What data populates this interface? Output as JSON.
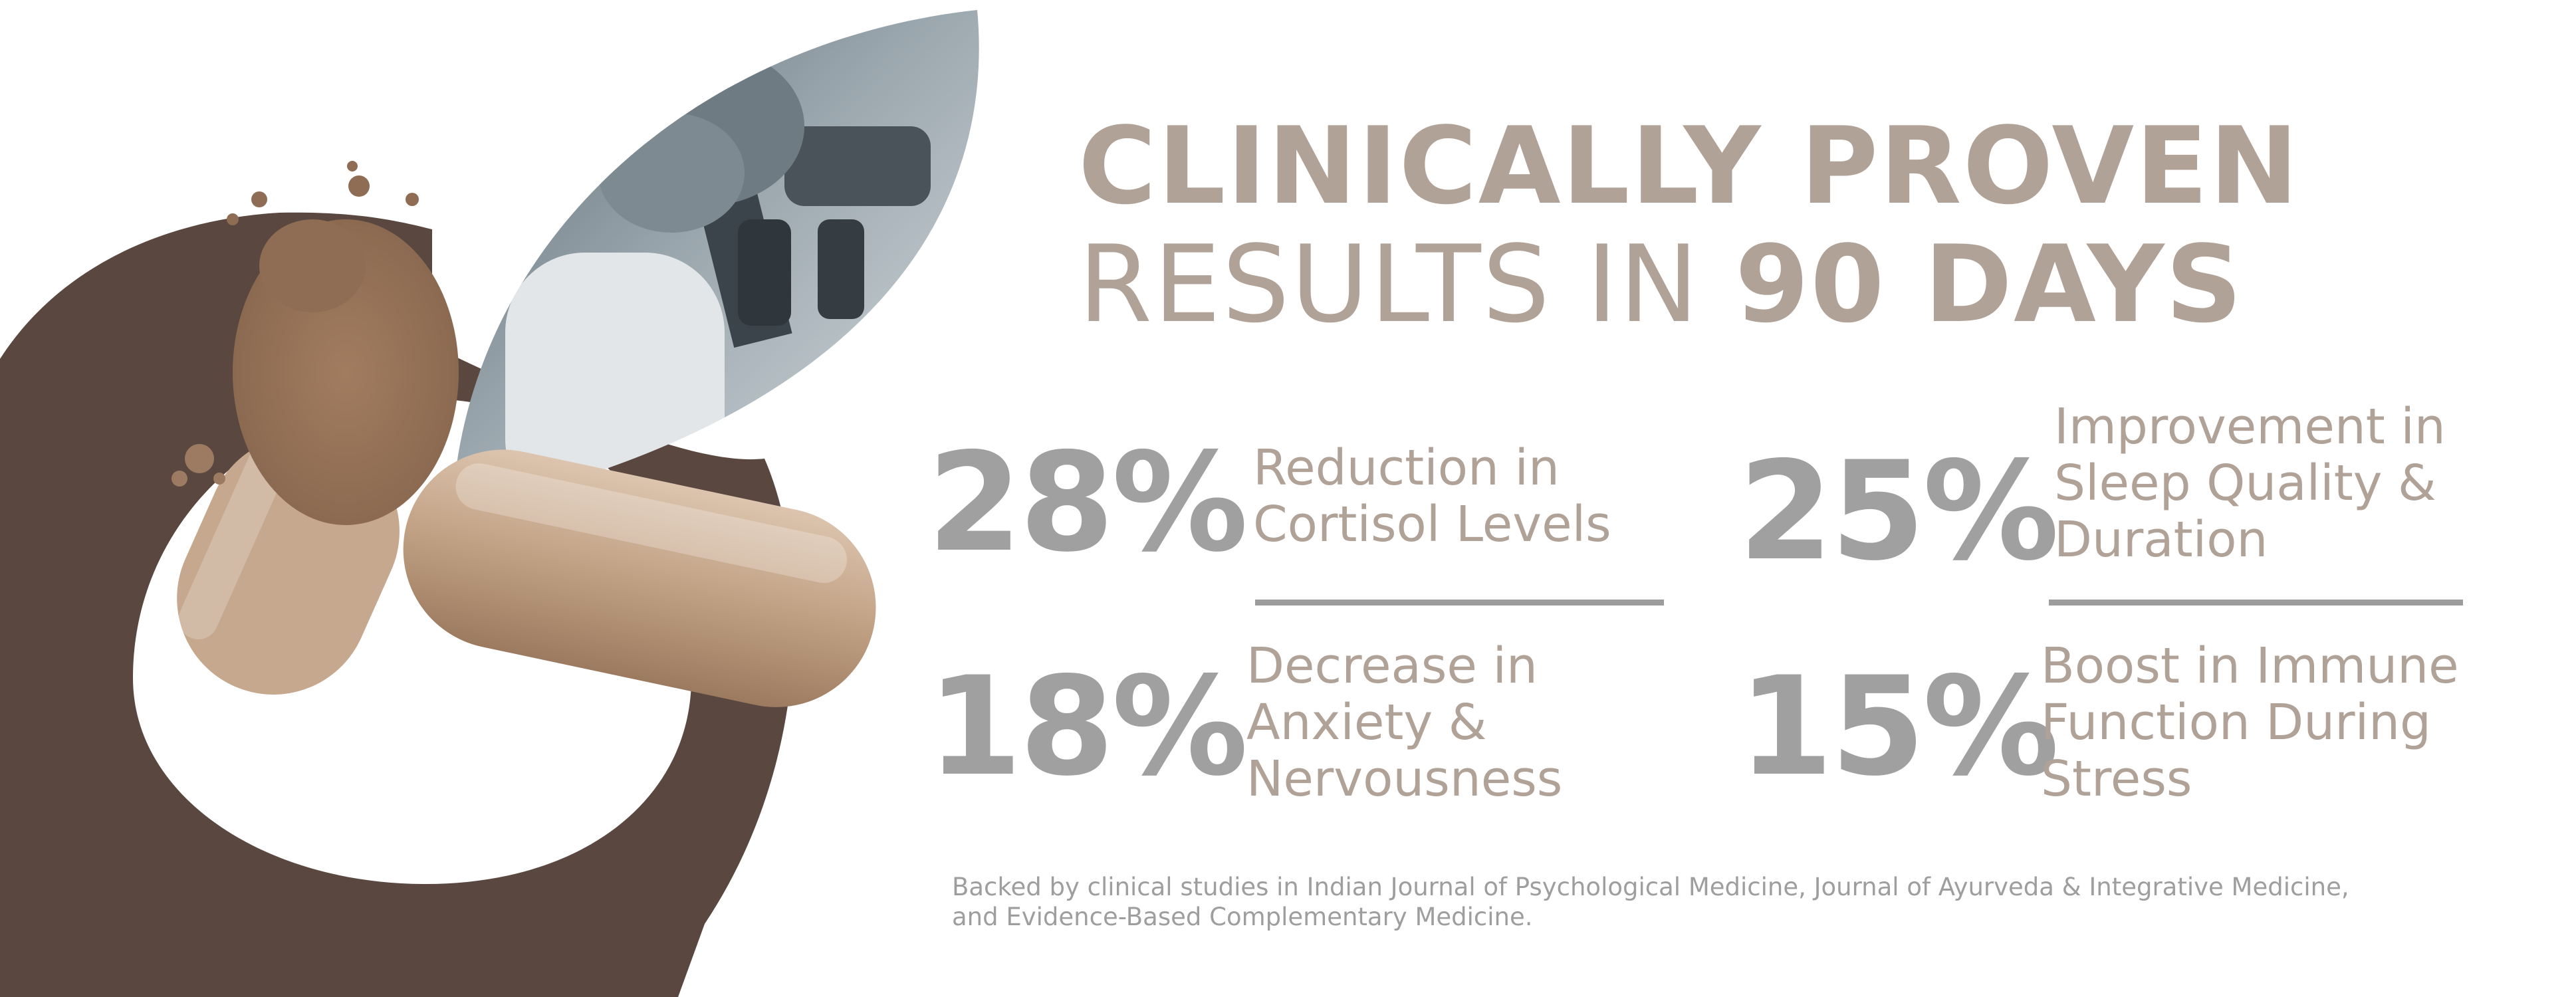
{
  "heading": {
    "line1": "CLINICALLY PROVEN",
    "line2_prefix": "RESULTS IN ",
    "line2_emphasis": "90 DAYS"
  },
  "stats": [
    {
      "value": "28%",
      "lines": [
        "Reduction in",
        "Cortisol Levels"
      ]
    },
    {
      "value": "25%",
      "lines": [
        "Improvement in",
        "Sleep Quality &",
        "Duration"
      ]
    },
    {
      "value": "18%",
      "lines": [
        "Decrease in",
        "Anxiety &",
        "Nervousness"
      ]
    },
    {
      "value": "15%",
      "lines": [
        "Boost in Immune",
        "Function During",
        "Stress"
      ]
    }
  ],
  "footnote": {
    "line1": "Backed by clinical studies in Indian Journal of Psychological Medicine, Journal of Ayurveda & Integrative Medicine,",
    "line2": "and Evidence-Based Complementary Medicine."
  },
  "colors": {
    "heading": "#b1a298",
    "percent": "#a0a0a0",
    "description": "#b1a298",
    "divider": "#9c9c9c",
    "footnote": "#9e9e9e",
    "ring": "#5a4840",
    "capsule": "#c9ab91",
    "photo_tint": "#8d9aa2"
  },
  "graphics": {
    "ring": "dark-brown-ring-shape",
    "leaf_photo": "scientist-with-microscope-photo",
    "capsule": "open-herbal-powder-capsule"
  }
}
